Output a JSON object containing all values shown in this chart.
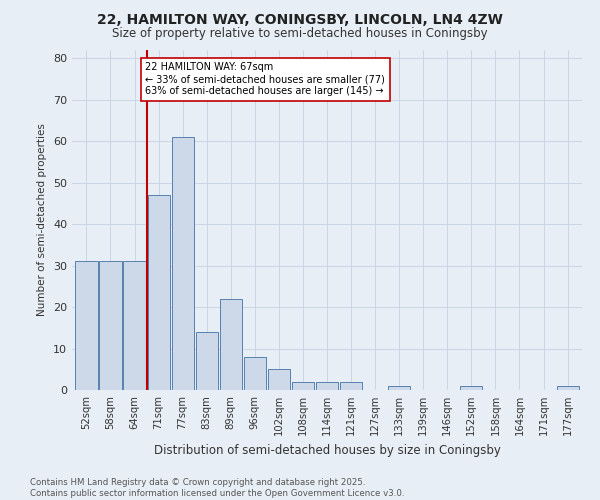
{
  "title1": "22, HAMILTON WAY, CONINGSBY, LINCOLN, LN4 4ZW",
  "title2": "Size of property relative to semi-detached houses in Coningsby",
  "xlabel": "Distribution of semi-detached houses by size in Coningsby",
  "ylabel": "Number of semi-detached properties",
  "footer1": "Contains HM Land Registry data © Crown copyright and database right 2025.",
  "footer2": "Contains public sector information licensed under the Open Government Licence v3.0.",
  "bin_labels": [
    "52sqm",
    "58sqm",
    "64sqm",
    "71sqm",
    "77sqm",
    "83sqm",
    "89sqm",
    "96sqm",
    "102sqm",
    "108sqm",
    "114sqm",
    "121sqm",
    "127sqm",
    "133sqm",
    "139sqm",
    "146sqm",
    "152sqm",
    "158sqm",
    "164sqm",
    "171sqm",
    "177sqm"
  ],
  "bar_values": [
    31,
    31,
    31,
    47,
    61,
    14,
    22,
    8,
    5,
    2,
    2,
    2,
    0,
    1,
    0,
    0,
    1,
    0,
    0,
    0,
    1
  ],
  "bar_color": "#cdd8e8",
  "bar_edge_color": "#5580b0",
  "vline_x": 2.5,
  "vline_color": "#c00000",
  "annotation_text": "22 HAMILTON WAY: 67sqm\n← 33% of semi-detached houses are smaller (77)\n63% of semi-detached houses are larger (145) →",
  "annotation_box_color": "#ffffff",
  "annotation_box_edge": "#c00000",
  "ylim": [
    0,
    82
  ],
  "yticks": [
    0,
    10,
    20,
    30,
    40,
    50,
    60,
    70,
    80
  ],
  "grid_color": "#ccd5e5",
  "bg_color": "#e8eef5"
}
